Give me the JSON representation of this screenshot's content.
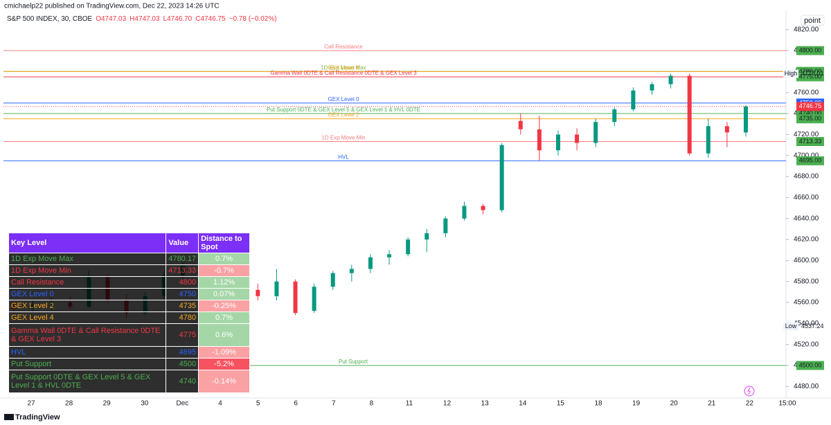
{
  "header": {
    "published": "cmichaelp22 published on TradingView.com, Dec 22, 2023 14:26 UTC",
    "symbol": "S&P 500 INDEX, 30, CBOE",
    "ohlc": [
      "O4747.03",
      "H4747.03",
      "L4746.70",
      "C4746.75",
      "−0.78 (−0.02%)"
    ]
  },
  "chart_data": {
    "type": "candlestick",
    "up_color": "#089981",
    "down_color": "#f23645",
    "candles": {
      "open": [
        4556,
        4554,
        4558,
        4560,
        4556,
        4584,
        4562,
        4550,
        4566,
        4586,
        4595,
        4562,
        4568,
        4572,
        4566,
        4580,
        4552,
        4575,
        4588,
        4592,
        4603,
        4606,
        4620,
        4626,
        4640,
        4652,
        4648,
        4733,
        4725,
        4705,
        4720,
        4712,
        4732,
        4744,
        4762,
        4768,
        4776,
        4702,
        4728,
        4722
      ],
      "high": [
        4560,
        4562,
        4565,
        4566,
        4590,
        4587,
        4568,
        4570,
        4590,
        4598,
        4597,
        4570,
        4580,
        4578,
        4592,
        4582,
        4578,
        4590,
        4596,
        4606,
        4610,
        4622,
        4630,
        4642,
        4656,
        4654,
        4712,
        4740,
        4738,
        4724,
        4726,
        4735,
        4746,
        4765,
        4770,
        4778,
        4778,
        4735,
        4732,
        4748
      ],
      "low": [
        4548,
        4550,
        4552,
        4554,
        4555,
        4560,
        4545,
        4548,
        4562,
        4582,
        4560,
        4555,
        4560,
        4562,
        4562,
        4548,
        4550,
        4572,
        4580,
        4588,
        4596,
        4604,
        4608,
        4622,
        4638,
        4644,
        4646,
        4720,
        4695,
        4700,
        4705,
        4708,
        4728,
        4742,
        4758,
        4764,
        4700,
        4698,
        4708,
        4718
      ],
      "close": [
        4554,
        4558,
        4560,
        4556,
        4584,
        4562,
        4550,
        4566,
        4586,
        4595,
        4562,
        4568,
        4572,
        4566,
        4580,
        4550,
        4575,
        4588,
        4592,
        4603,
        4606,
        4620,
        4626,
        4640,
        4652,
        4648,
        4710,
        4725,
        4705,
        4720,
        4712,
        4732,
        4744,
        4762,
        4768,
        4776,
        4702,
        4728,
        4722,
        4746.75
      ]
    },
    "x_labels": [
      "27",
      "28",
      "29",
      "30",
      "Dec",
      "4",
      "5",
      "6",
      "7",
      "8",
      "11",
      "12",
      "13",
      "14",
      "15",
      "18",
      "19",
      "20",
      "21",
      "22",
      "15:00"
    ],
    "ylim": [
      4469,
      4835
    ],
    "yticks": [
      {
        "value": 4480,
        "label": "4480.00"
      },
      {
        "value": 4500,
        "label": "4500.00"
      },
      {
        "value": 4520,
        "label": "4520.00"
      },
      {
        "value": 4540,
        "label": "4540.00"
      },
      {
        "value": 4560,
        "label": "4560.00"
      },
      {
        "value": 4580,
        "label": "4580.00"
      },
      {
        "value": 4600,
        "label": "4600.00"
      },
      {
        "value": 4620,
        "label": "4620.00"
      },
      {
        "value": 4640,
        "label": "4640.00"
      },
      {
        "value": 4660,
        "label": "4660.00"
      },
      {
        "value": 4680,
        "label": "4680.00"
      },
      {
        "value": 4700,
        "label": "4700.00"
      },
      {
        "value": 4720,
        "label": "4720.00"
      },
      {
        "value": 4740,
        "label": "4740.00"
      },
      {
        "value": 4760,
        "label": "4760.00"
      },
      {
        "value": 4780,
        "label": "4780.00"
      },
      {
        "value": 4800,
        "label": "4800.00"
      },
      {
        "value": 4820,
        "label": "4820.00"
      }
    ],
    "levels": [
      {
        "name": "Call Resistance",
        "value": 4800,
        "value_label": "4800.00",
        "color": "#f77c80",
        "badge_color": "#4caf50"
      },
      {
        "name": "1D Exp Move Max",
        "value": 4780.17,
        "value_label": "4780.17",
        "color": "#8bb23a",
        "badge_color": "#4caf50"
      },
      {
        "name": "GEX Level 4",
        "value": 4780,
        "value_label": "4780.00",
        "color": "#f5a623",
        "badge_color": "#4caf50"
      },
      {
        "name": "Gamma Wall 0DTE & Call Resistance 0DTE & GEX Level 3",
        "value": 4775,
        "value_label": "4775.00",
        "color": "#f23645",
        "badge_color": "#4caf50"
      },
      {
        "name": "GEX Level 0",
        "value": 4750,
        "value_label": "4750.00",
        "color": "#2962ff",
        "badge_color": "#2962ff"
      },
      {
        "name": "Put Support 0DTE & GEX Level 5 & GEX Level 1 & HVL 0DTE",
        "value": 4740,
        "value_label": "4740.00",
        "color": "#4caf50",
        "badge_color": "#4caf50"
      },
      {
        "name": "GEX Level 2",
        "value": 4735,
        "value_label": "4735.00",
        "color": "#f5a623",
        "badge_color": "#4caf50"
      },
      {
        "name": "1D Exp Move Min",
        "value": 4713.33,
        "value_label": "4713.33",
        "color": "#f77c80",
        "badge_color": "#4caf50"
      },
      {
        "name": "HVL",
        "value": 4695,
        "value_label": "4695.00",
        "color": "#2962ff",
        "badge_color": "#4caf50"
      },
      {
        "name": "Put Support",
        "value": 4500,
        "value_label": "4500.00",
        "color": "#4caf50",
        "badge_color": "#4caf50"
      }
    ],
    "last": {
      "value": 4746.75,
      "value_label": "4746.75",
      "color": "#f23645"
    },
    "high": {
      "label": "High",
      "value": 4778.01,
      "value_label": "4778.01"
    },
    "low": {
      "label": "Low",
      "value": 4537.24,
      "value_label": "4537.24"
    },
    "scale_button": "point"
  },
  "table": {
    "header": [
      "Key Level",
      "Value",
      "Distance to Spot"
    ],
    "rows": [
      [
        "1D Exp Move Max",
        "4780.17",
        "0.7%"
      ],
      [
        "1D Exp Move Min",
        "4713.33",
        "-0.7%"
      ],
      [
        "Call Resistance",
        "4800",
        "1.12%"
      ],
      [
        "GEX Level 0",
        "4750",
        "0.07%"
      ],
      [
        "GEX Level 2",
        "4735",
        "-0.25%"
      ],
      [
        "GEX Level 4",
        "4780",
        "0.7%"
      ],
      [
        "Gamma Wall 0DTE & Call Resistance 0DTE & GEX Level 3",
        "4775",
        "0.6%"
      ],
      [
        "HVL",
        "4695",
        "-1.09%"
      ],
      [
        "Put Support",
        "4500",
        "-5.2%"
      ],
      [
        "Put Support 0DTE & GEX Level 5 & GEX Level 1 & HVL 0DTE",
        "4740",
        "-0.14%"
      ]
    ],
    "text_colors": [
      "#4caf50",
      "#f23645",
      "#f23645",
      "#2962ff",
      "#f5a623",
      "#f5a623",
      "#f23645",
      "#2962ff",
      "#4caf50",
      "#4caf50"
    ],
    "distance_colors": [
      "#a5d6a7",
      "#faa1a4",
      "#a5d6a7",
      "#a5d6a7",
      "#faa1a4",
      "#a5d6a7",
      "#a5d6a7",
      "#faa1a4",
      "#f7525f",
      "#faa1a4"
    ]
  },
  "footer": {
    "brand": "TradingView"
  }
}
